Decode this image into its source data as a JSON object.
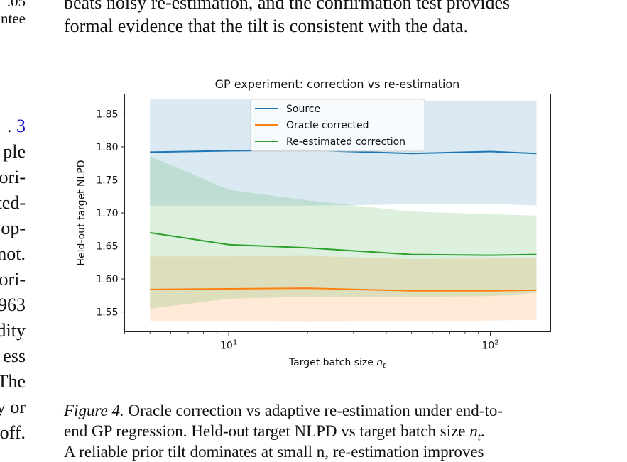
{
  "body_text": {
    "line1": "beats noisy re-estimation, and the confirmation test provides",
    "line2": "formal evidence that the tilt is consistent with the data."
  },
  "left_margin": {
    "top": [
      ".05",
      "ntee"
    ],
    "ref_prefix": ". ",
    "ref_number": "3",
    "lines": [
      "ple",
      "ori-",
      "ted-",
      "op-",
      "not.",
      "ori-",
      "963",
      "dity",
      "ess",
      "The",
      "y or",
      "off."
    ]
  },
  "chart_data": {
    "type": "line",
    "title": "GP experiment: correction vs re-estimation",
    "xlabel": "Target batch size n_t",
    "xlabel_text": "Target batch size ",
    "xlabel_italic": "n",
    "xlabel_sub": "t",
    "ylabel": "Held-out target NLPD",
    "xscale": "log",
    "xlim": [
      4,
      170
    ],
    "ylim": [
      1.52,
      1.88
    ],
    "yticks": [
      "1.55",
      "1.60",
      "1.65",
      "1.70",
      "1.75",
      "1.80",
      "1.85"
    ],
    "xticks": [
      {
        "base": "10",
        "exp": "1"
      },
      {
        "base": "10",
        "exp": "2"
      }
    ],
    "legend_position": "upper center",
    "x": [
      5,
      10,
      20,
      50,
      100,
      150
    ],
    "series": [
      {
        "name": "Source",
        "color": "#1f77b4",
        "values": [
          1.792,
          1.794,
          1.795,
          1.79,
          1.793,
          1.79
        ],
        "lower": [
          1.711,
          1.711,
          1.711,
          1.713,
          1.714,
          1.711
        ],
        "upper": [
          1.873,
          1.873,
          1.873,
          1.87,
          1.87,
          1.87
        ]
      },
      {
        "name": "Oracle corrected",
        "color": "#ff7f0e",
        "values": [
          1.584,
          1.585,
          1.586,
          1.582,
          1.582,
          1.583
        ],
        "lower": [
          1.536,
          1.536,
          1.535,
          1.536,
          1.537,
          1.538
        ],
        "upper": [
          1.634,
          1.634,
          1.635,
          1.63,
          1.631,
          1.631
        ]
      },
      {
        "name": "Re-estimated correction",
        "color": "#2ca02c",
        "values": [
          1.67,
          1.652,
          1.647,
          1.637,
          1.636,
          1.637
        ],
        "lower": [
          1.555,
          1.57,
          1.573,
          1.573,
          1.574,
          1.579
        ],
        "upper": [
          1.786,
          1.735,
          1.719,
          1.702,
          1.698,
          1.696
        ]
      }
    ]
  },
  "caption": {
    "label": "Figure 4.",
    "line1_text": " Oracle correction vs adaptive re-estimation under end-to-",
    "line2_text": "end GP regression. Held-out target NLPD vs target batch size ",
    "line2_math_n": "n",
    "line2_math_sub": "t",
    "line2_end": ".",
    "line3_text": "A reliable prior tilt dominates at small n, re-estimation improves"
  }
}
